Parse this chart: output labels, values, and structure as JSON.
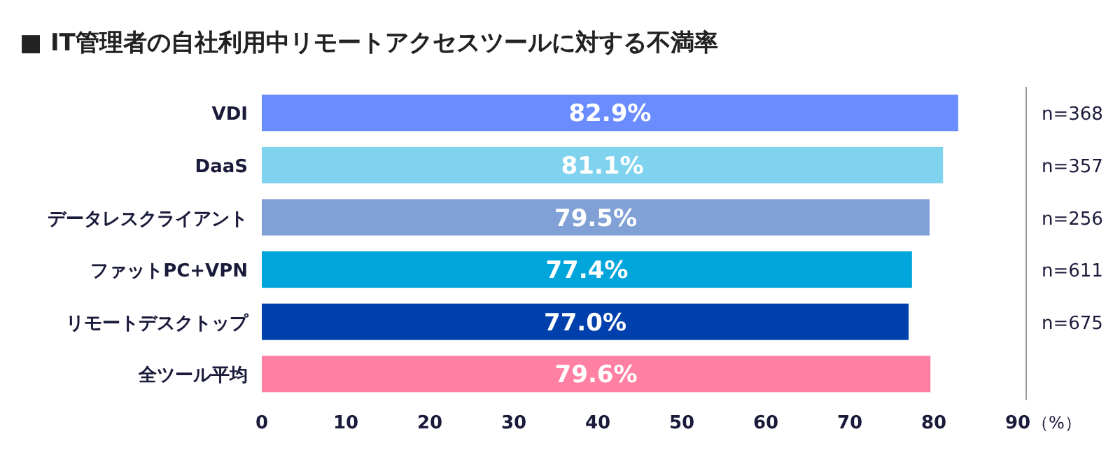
{
  "chart_data": {
    "type": "bar",
    "orientation": "horizontal",
    "title": "■ IT管理者の自社利用中リモートアクセスツールに対する不満率",
    "xlabel": "（%）",
    "categories": [
      "VDI",
      "DaaS",
      "データレスクライアント",
      "ファットPC+VPN",
      "リモートデスクトップ",
      "全ツール平均"
    ],
    "values": [
      82.9,
      81.1,
      79.5,
      77.4,
      77.0,
      79.6
    ],
    "value_labels": [
      "82.9%",
      "81.1%",
      "79.5%",
      "77.4%",
      "77.0%",
      "79.6%"
    ],
    "colors": [
      "#6b8cff",
      "#7fd3ef",
      "#80a0d6",
      "#00a5dc",
      "#0040ad",
      "#ff80a2"
    ],
    "xlim": [
      0,
      90
    ],
    "xticks": [
      0,
      10,
      20,
      30,
      40,
      50,
      60,
      70,
      80,
      90
    ],
    "annotations": [
      "n=368",
      "n=357",
      "n=256",
      "n=611",
      "n=675"
    ]
  }
}
